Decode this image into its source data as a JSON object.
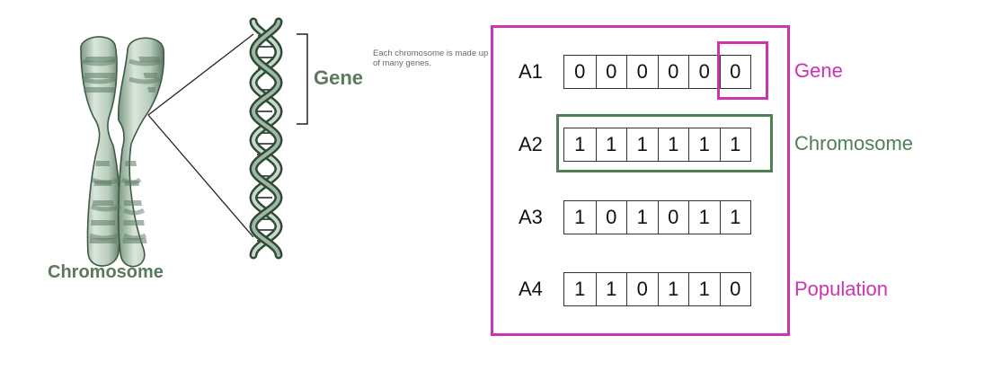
{
  "left_panel": {
    "gene_label": "Gene",
    "chromosome_label": "Chromosome",
    "caption": "Each chromosome is made up of many genes."
  },
  "population": {
    "rows": [
      {
        "label": "A1",
        "bits": [
          "0",
          "0",
          "0",
          "0",
          "0",
          "0"
        ]
      },
      {
        "label": "A2",
        "bits": [
          "1",
          "1",
          "1",
          "1",
          "1",
          "1"
        ]
      },
      {
        "label": "A3",
        "bits": [
          "1",
          "0",
          "1",
          "0",
          "1",
          "1"
        ]
      },
      {
        "label": "A4",
        "bits": [
          "1",
          "1",
          "0",
          "1",
          "1",
          "0"
        ]
      }
    ],
    "tags": {
      "gene": "Gene",
      "chromosome": "Chromosome",
      "population": "Population"
    },
    "colors": {
      "gene": "#cc33b3",
      "chromosome": "#4e7f55",
      "population": "#cc33b3"
    }
  }
}
